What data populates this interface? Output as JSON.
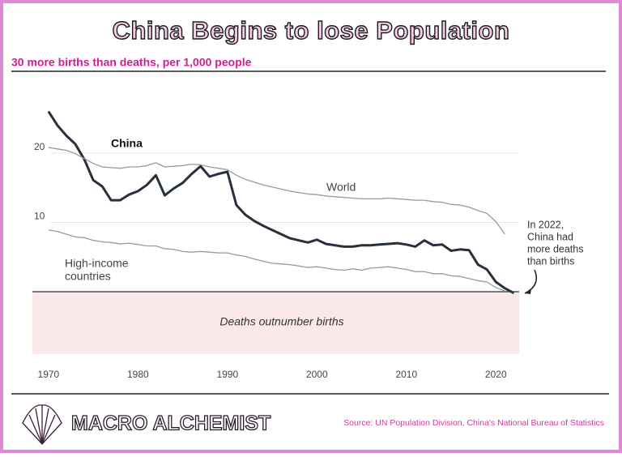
{
  "chart_data": {
    "type": "line",
    "title": "China Begins to lose Population",
    "subtitle": "30 more births than deaths, per 1,000 people",
    "source": "Source: UN Population Division, China's National Bureau of Statistics",
    "brand": "MACRO ALCHEMIST",
    "region_label": "Deaths outnumber births",
    "annotation": [
      "In 2022,",
      "China had",
      "more deaths",
      "than births"
    ],
    "x": [
      1970,
      1971,
      1972,
      1973,
      1974,
      1975,
      1976,
      1977,
      1978,
      1979,
      1980,
      1981,
      1982,
      1983,
      1984,
      1985,
      1986,
      1987,
      1988,
      1989,
      1990,
      1991,
      1992,
      1993,
      1994,
      1995,
      1996,
      1997,
      1998,
      1999,
      2000,
      2001,
      2002,
      2003,
      2004,
      2005,
      2006,
      2007,
      2008,
      2009,
      2010,
      2011,
      2012,
      2013,
      2014,
      2015,
      2016,
      2017,
      2018,
      2019,
      2020,
      2021,
      2022
    ],
    "series": [
      {
        "name": "China",
        "color": "#27303d",
        "values": [
          26.0,
          24.0,
          22.5,
          21.3,
          19.1,
          16.1,
          15.2,
          13.2,
          13.2,
          14.0,
          14.5,
          15.4,
          16.8,
          13.9,
          14.9,
          15.7,
          17.0,
          18.1,
          16.6,
          17.0,
          17.3,
          12.5,
          11.1,
          10.2,
          9.5,
          8.9,
          8.3,
          7.7,
          7.4,
          7.1,
          7.5,
          6.9,
          6.7,
          6.5,
          6.5,
          6.7,
          6.7,
          6.8,
          6.9,
          7.0,
          6.8,
          6.5,
          7.4,
          6.7,
          6.8,
          5.9,
          6.1,
          6.0,
          3.9,
          3.2,
          1.4,
          0.5,
          -0.2
        ]
      },
      {
        "name": [
          "World"
        ],
        "color": "#9a9a9a",
        "values": [
          20.8,
          20.6,
          20.4,
          19.9,
          19.2,
          18.5,
          18.0,
          17.9,
          17.8,
          18.0,
          18.0,
          18.2,
          18.6,
          18.0,
          18.1,
          18.2,
          18.4,
          18.3,
          18.0,
          17.8,
          17.6,
          16.8,
          16.2,
          15.8,
          15.4,
          15.1,
          14.8,
          14.5,
          14.3,
          14.1,
          14.0,
          13.8,
          13.7,
          13.6,
          13.5,
          13.4,
          13.4,
          13.4,
          13.5,
          13.4,
          13.3,
          13.2,
          13.2,
          13.0,
          12.9,
          12.6,
          12.5,
          12.2,
          11.7,
          11.3,
          10.1,
          8.3,
          null
        ]
      },
      {
        "name": [
          "High-income",
          "countries"
        ],
        "color": "#9a9a9a",
        "values": [
          8.9,
          8.7,
          8.3,
          7.9,
          7.8,
          7.4,
          7.2,
          7.1,
          6.9,
          7.0,
          6.8,
          6.6,
          6.6,
          6.2,
          6.1,
          5.8,
          5.7,
          5.8,
          5.7,
          5.6,
          5.6,
          5.3,
          5.1,
          4.7,
          4.4,
          4.1,
          4.0,
          3.9,
          3.7,
          3.5,
          3.6,
          3.4,
          3.2,
          3.1,
          3.3,
          3.1,
          3.4,
          3.5,
          3.6,
          3.4,
          3.2,
          2.9,
          2.9,
          2.6,
          2.6,
          2.3,
          2.2,
          1.9,
          1.6,
          1.4,
          0.6,
          0.1,
          null
        ]
      }
    ],
    "xlim": [
      1968.2,
      2022.6
    ],
    "xticks": [
      1970,
      1980,
      1990,
      2000,
      2010,
      2020
    ],
    "ylim": [
      -9,
      27
    ],
    "yticks": [
      10,
      20
    ],
    "grid": true,
    "region_color": "#fbe9e9"
  }
}
